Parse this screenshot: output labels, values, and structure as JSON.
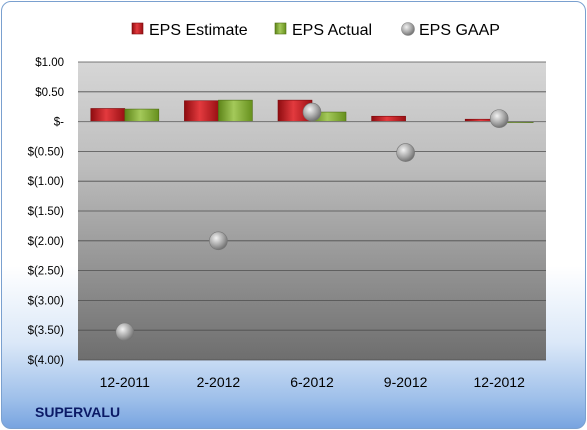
{
  "company_label": "SUPERVALU",
  "chart_data": {
    "type": "bar",
    "categories": [
      "12-2011",
      "2-2012",
      "6-2012",
      "9-2012",
      "12-2012"
    ],
    "series": [
      {
        "name": "EPS Estimate",
        "kind": "bar",
        "color": "#c0171b",
        "values": [
          0.22,
          0.35,
          0.36,
          0.09,
          0.04
        ]
      },
      {
        "name": "EPS Actual",
        "kind": "bar",
        "color": "#6e9a22",
        "values": [
          0.21,
          0.36,
          0.16,
          null,
          0.0
        ]
      },
      {
        "name": "EPS GAAP",
        "kind": "marker",
        "color": "#9b9b9b",
        "values": [
          -3.53,
          -2.0,
          0.16,
          -0.52,
          0.05
        ]
      }
    ],
    "ylim": [
      -4.0,
      1.0
    ],
    "yticks": [
      1.0,
      0.5,
      0.0,
      -0.5,
      -1.0,
      -1.5,
      -2.0,
      -2.5,
      -3.0,
      -3.5,
      -4.0
    ],
    "ytick_labels": [
      "$1.00",
      "$0.50",
      "$-",
      "$(0.50)",
      "$(1.00)",
      "$(1.50)",
      "$(2.00)",
      "$(2.50)",
      "$(3.00)",
      "$(3.50)",
      "$(4.00)"
    ],
    "grid": true,
    "legend": "top"
  }
}
